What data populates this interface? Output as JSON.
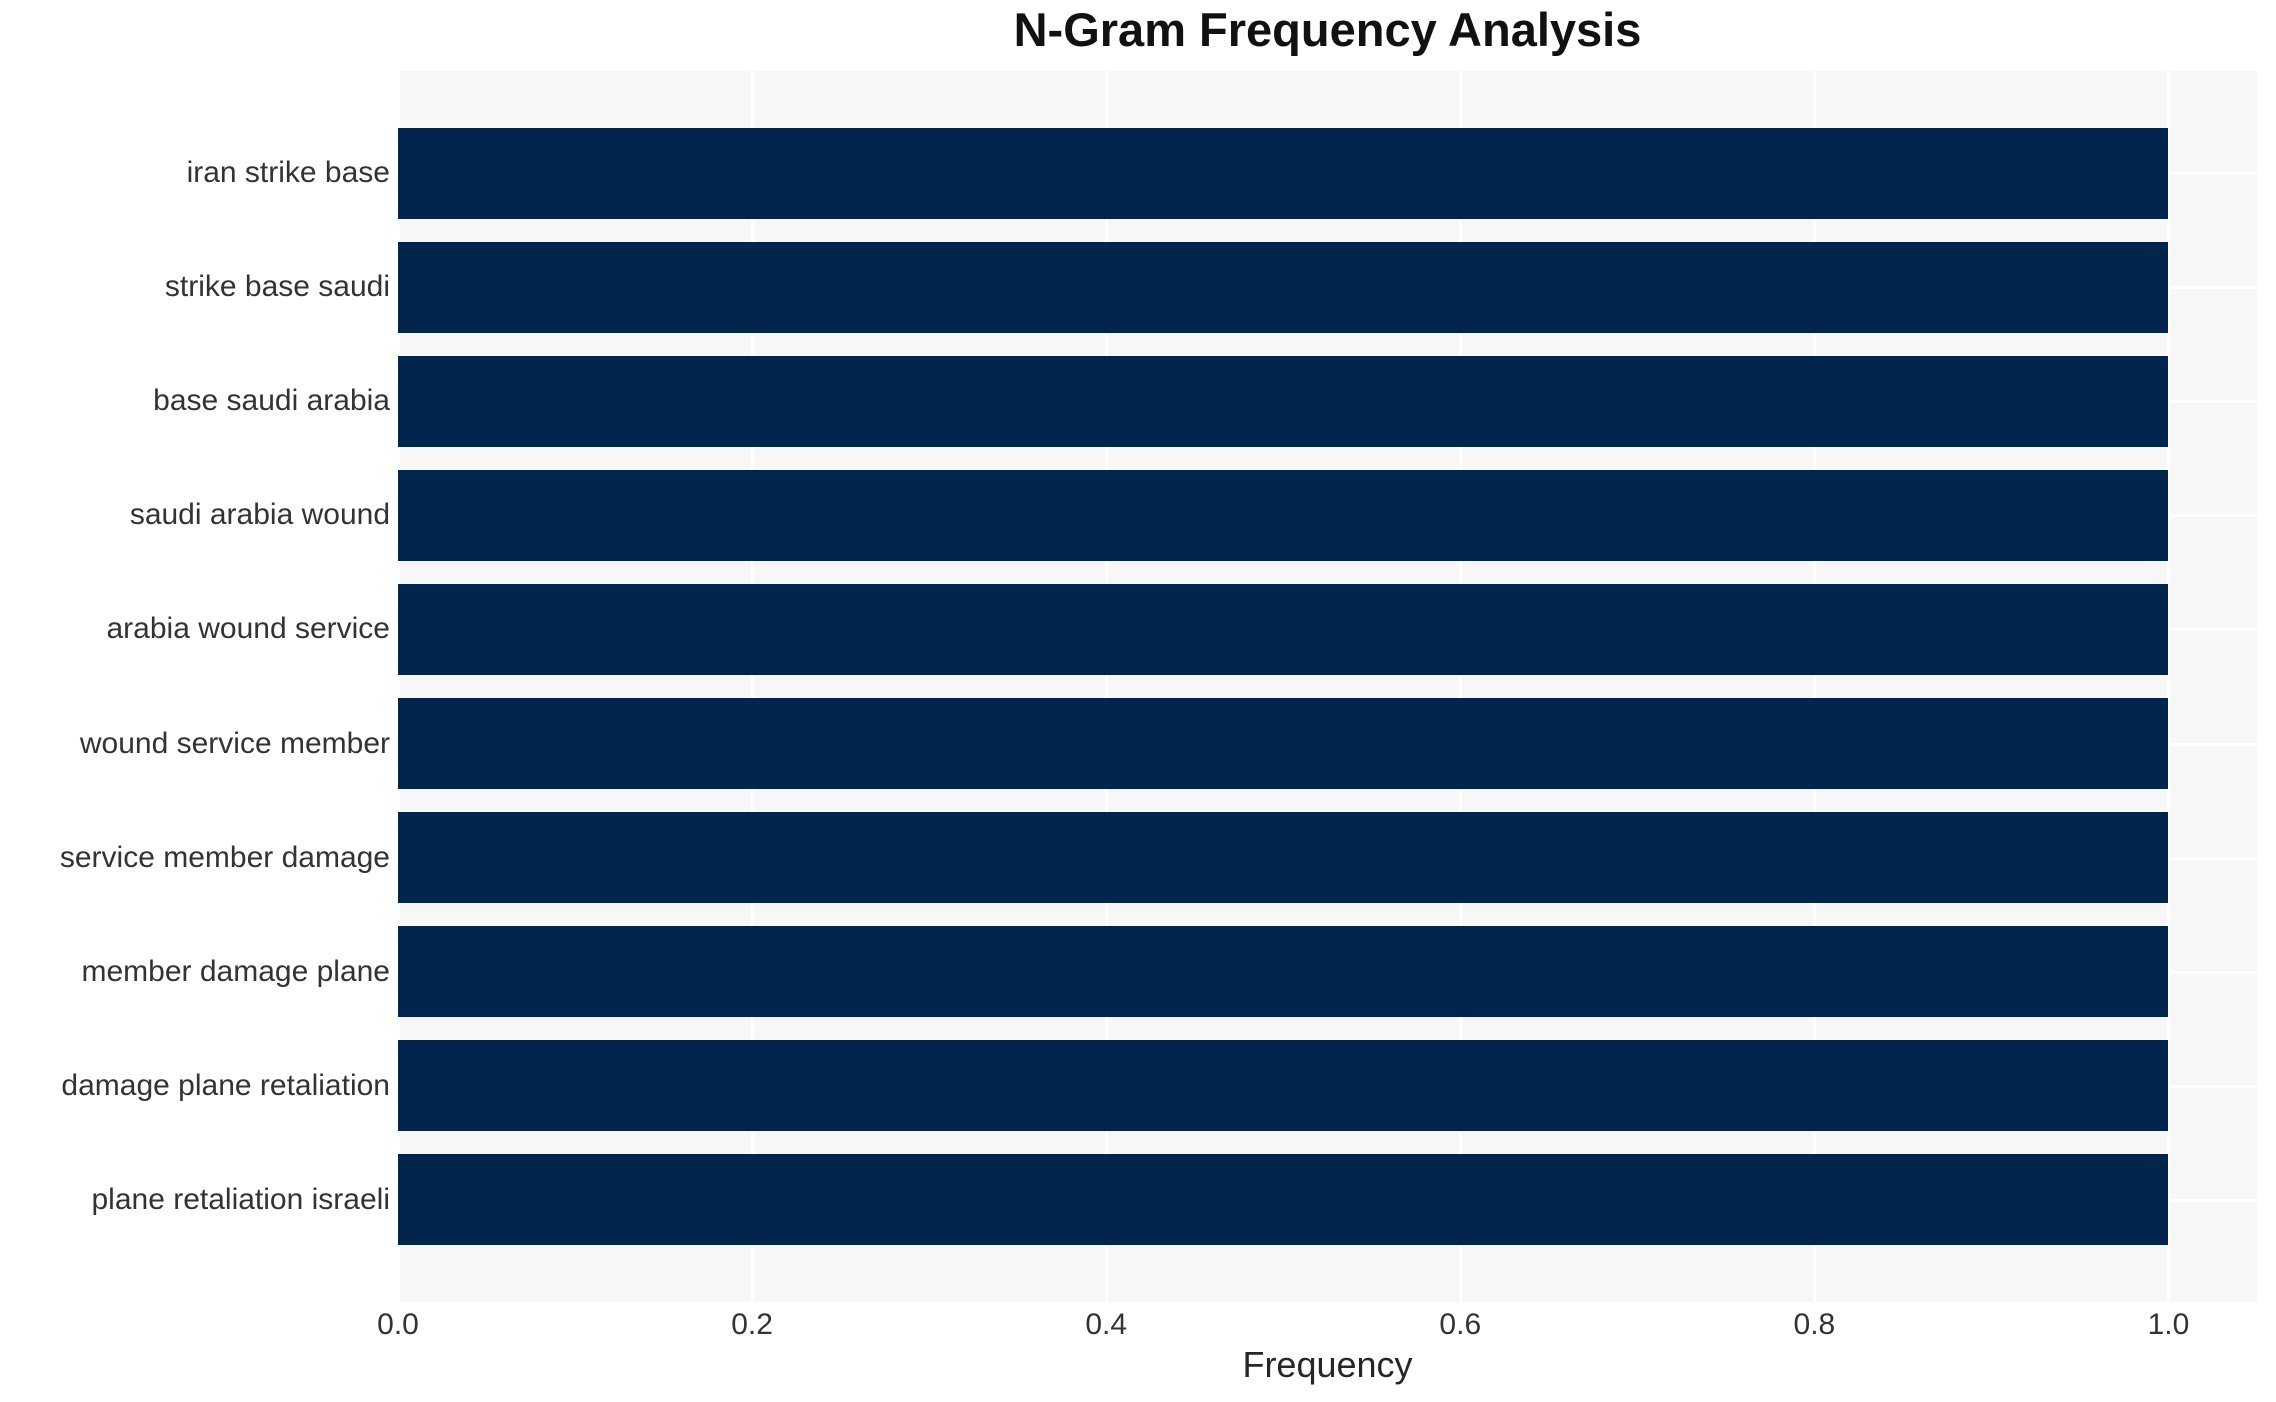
{
  "title": "N-Gram Frequency Analysis",
  "chart_data": {
    "type": "bar",
    "orientation": "horizontal",
    "title": "N-Gram Frequency Analysis",
    "xlabel": "Frequency",
    "ylabel": "",
    "categories": [
      "iran strike base",
      "strike base saudi",
      "base saudi arabia",
      "saudi arabia wound",
      "arabia wound service",
      "wound service member",
      "service member damage",
      "member damage plane",
      "damage plane retaliation",
      "plane retaliation israeli"
    ],
    "values": [
      1.0,
      1.0,
      1.0,
      1.0,
      1.0,
      1.0,
      1.0,
      1.0,
      1.0,
      1.0
    ],
    "xlim": [
      0,
      1.05
    ],
    "xtick_labels": [
      "0.0",
      "0.2",
      "0.4",
      "0.6",
      "0.8",
      "1.0"
    ],
    "xtick_values": [
      0.0,
      0.2,
      0.4,
      0.6,
      0.8,
      1.0
    ],
    "grid": true,
    "legend": false,
    "bar_height_fraction": 0.8
  },
  "colors": {
    "bar": "#02254e",
    "plot_background": "#f7f7f7",
    "gridline": "#ffffff",
    "tick_text": "#333333",
    "axis_label_text": "#262626",
    "title_text": "#111111",
    "figure_background": "#ffffff"
  }
}
